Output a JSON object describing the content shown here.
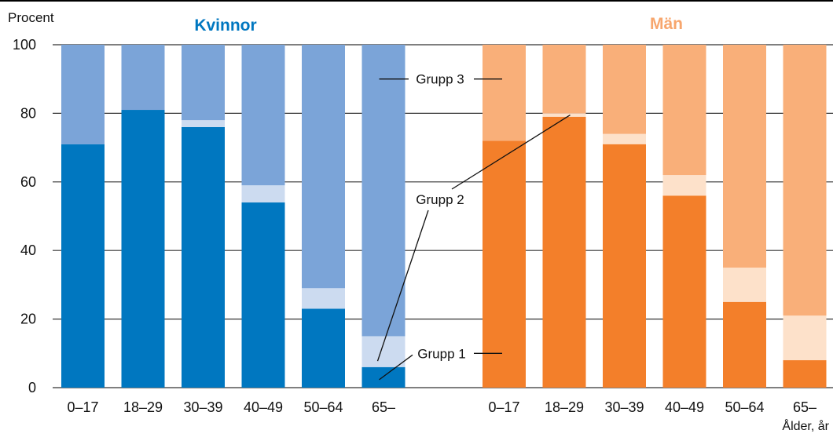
{
  "chart_data": {
    "type": "bar",
    "stacked": true,
    "ylabel": "Procent",
    "xlabel": "Ålder, år",
    "ylim": [
      0,
      100
    ],
    "yticks": [
      0,
      20,
      40,
      60,
      80,
      100
    ],
    "grid": true,
    "categories": [
      "0–17",
      "18–29",
      "30–39",
      "40–49",
      "50–64",
      "65–"
    ],
    "panels": [
      {
        "title": "Kvinnor",
        "title_color": "#0077c0",
        "series": [
          {
            "name": "Grupp 1",
            "color": "#0077c0",
            "values": [
              71,
              81,
              76,
              54,
              23,
              6
            ]
          },
          {
            "name": "Grupp 2",
            "color": "#ccdbf0",
            "values": [
              0,
              0,
              2,
              5,
              6,
              9
            ]
          },
          {
            "name": "Grupp 3",
            "color": "#7ba4d8",
            "values": [
              29,
              19,
              22,
              41,
              71,
              85
            ]
          }
        ]
      },
      {
        "title": "Män",
        "title_color": "#f7a66d",
        "series": [
          {
            "name": "Grupp 1",
            "color": "#f37f2a",
            "values": [
              72,
              79,
              71,
              56,
              25,
              8
            ]
          },
          {
            "name": "Grupp 2",
            "color": "#fde1ca",
            "values": [
              0,
              1,
              3,
              6,
              10,
              13
            ]
          },
          {
            "name": "Grupp 3",
            "color": "#f9af79",
            "values": [
              28,
              20,
              26,
              38,
              65,
              79
            ]
          }
        ]
      }
    ],
    "annotations": [
      {
        "label": "Grupp 3",
        "series": "Grupp 3"
      },
      {
        "label": "Grupp 2",
        "series": "Grupp 2"
      },
      {
        "label": "Grupp 1",
        "series": "Grupp 1"
      }
    ]
  }
}
